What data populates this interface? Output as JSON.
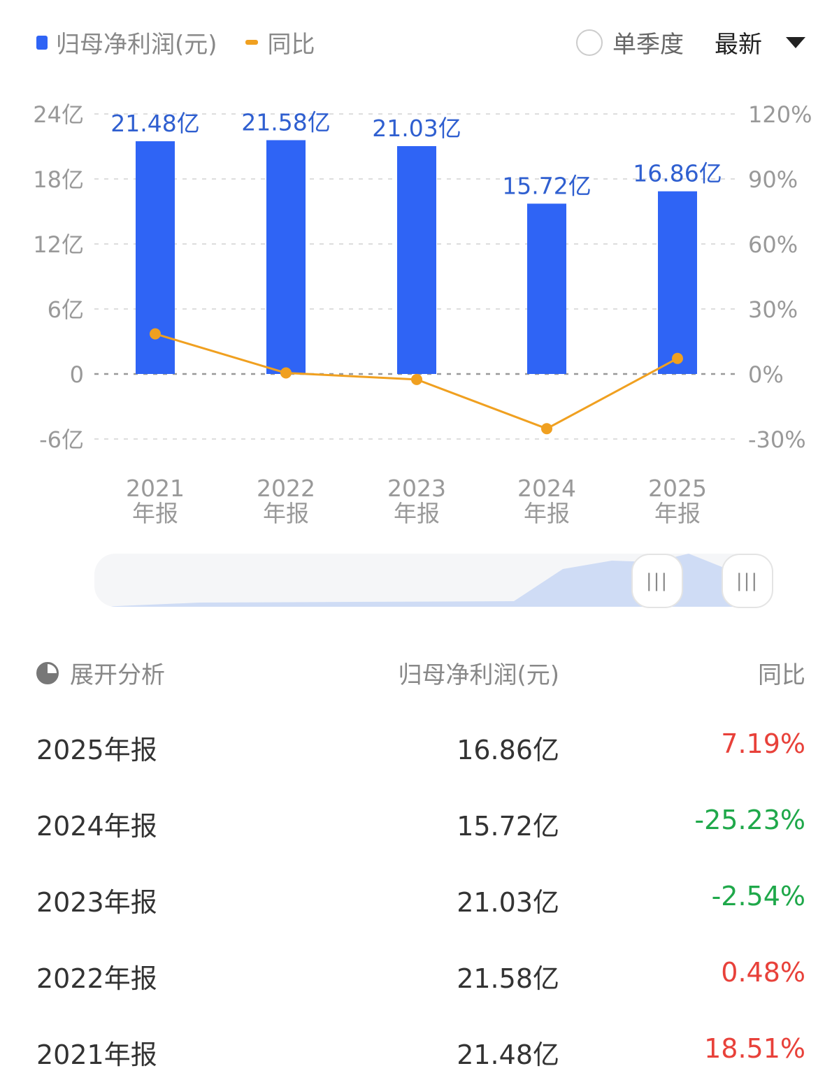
{
  "legend": {
    "series1": "归母净利润(元)",
    "series2": "同比"
  },
  "controls": {
    "single_quarter": "单季度",
    "sort": "最新"
  },
  "colors": {
    "bar": "#2f64f5",
    "line": "#f0a020",
    "up": "#e8413a",
    "down": "#1fa84a"
  },
  "chart_data": {
    "type": "bar+line",
    "categories": [
      "2021\n年报",
      "2022\n年报",
      "2023\n年报",
      "2024\n年报",
      "2025\n年报"
    ],
    "category_lines": [
      [
        "2021",
        "年报"
      ],
      [
        "2022",
        "年报"
      ],
      [
        "2023",
        "年报"
      ],
      [
        "2024",
        "年报"
      ],
      [
        "2025",
        "年报"
      ]
    ],
    "left_axis": {
      "ylim": [
        -6,
        24
      ],
      "ticks": [
        "-6亿",
        "0",
        "6亿",
        "12亿",
        "18亿",
        "24亿"
      ]
    },
    "right_axis": {
      "ylim": [
        -30,
        120
      ],
      "ticks": [
        "-30%",
        "0%",
        "30%",
        "60%",
        "90%",
        "120%"
      ]
    },
    "grid": true,
    "series": [
      {
        "name": "归母净利润(元)",
        "type": "bar",
        "values": [
          21.48,
          21.58,
          21.03,
          15.72,
          16.86
        ],
        "labels": [
          "21.48亿",
          "21.58亿",
          "21.03亿",
          "15.72亿",
          "16.86亿"
        ]
      },
      {
        "name": "同比",
        "type": "line",
        "values": [
          18.51,
          0.48,
          -2.54,
          -25.23,
          7.19
        ]
      }
    ]
  },
  "table": {
    "headers": [
      "展开分析",
      "归母净利润(元)",
      "同比"
    ],
    "rows": [
      {
        "period": "2025年报",
        "value": "16.86亿",
        "yoy": "7.19%",
        "dir": "up"
      },
      {
        "period": "2024年报",
        "value": "15.72亿",
        "yoy": "-25.23%",
        "dir": "down"
      },
      {
        "period": "2023年报",
        "value": "21.03亿",
        "yoy": "-2.54%",
        "dir": "down"
      },
      {
        "period": "2022年报",
        "value": "21.58亿",
        "yoy": "0.48%",
        "dir": "up"
      },
      {
        "period": "2021年报",
        "value": "21.48亿",
        "yoy": "18.51%",
        "dir": "up"
      }
    ]
  }
}
